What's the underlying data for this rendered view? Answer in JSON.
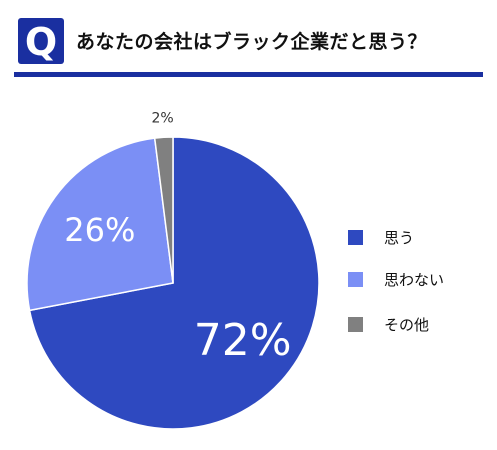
{
  "header": {
    "badge_letter": "Q",
    "title": "あなたの会社はブラック企業だと思う？"
  },
  "colors": {
    "accent": "#1a2fa0",
    "series": [
      "#2e49c0",
      "#7b8ff5",
      "#808080"
    ]
  },
  "chart_data": {
    "type": "pie",
    "title": "",
    "categories": [
      "思う",
      "思わない",
      "その他"
    ],
    "values": [
      72,
      26,
      2
    ],
    "data_labels": [
      "72%",
      "26%",
      "2%"
    ],
    "start_angle": "12 o'clock",
    "direction": "clockwise",
    "legend": "right"
  }
}
